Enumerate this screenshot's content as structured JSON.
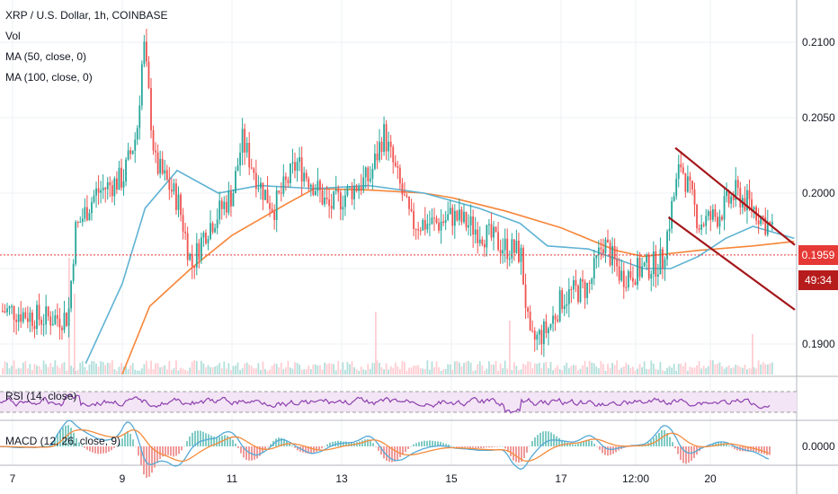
{
  "header": {
    "symbol_line": "XRP / U.S. Dollar, 1h, COINBASE",
    "vol_label": "Vol",
    "ma50_label": "MA (50, close, 0)",
    "ma100_label": "MA (100, close, 0)"
  },
  "panes": {
    "rsi_label": "RSI (14, close)",
    "macd_label": "MACD (12, 26, close, 9)"
  },
  "price_tags": {
    "last_price": "0.1959",
    "countdown": "49:34"
  },
  "colors": {
    "up": "#26a69a",
    "down": "#ef5350",
    "ma50": "#5fb3d3",
    "ma100": "#f7863a",
    "channel": "#a4161a",
    "rsi": "#8e3fb0",
    "rsi_band": "#f3e5f5",
    "macd": "#55a9d6",
    "signal": "#f58b3c",
    "last_price": "#e53935",
    "countdown_bg": "#b71c1c"
  },
  "chart_data": {
    "type": "candlestick",
    "title": "XRP / U.S. Dollar, 1h, COINBASE",
    "price_axis_ticks": [
      "0.2100",
      "0.2050",
      "0.2000",
      "0.1900"
    ],
    "macd_axis_ticks": [
      "0.0000"
    ],
    "time_axis_ticks": [
      "7",
      "9",
      "11",
      "13",
      "15",
      "17",
      "12:00",
      "20"
    ],
    "ylim": [
      0.1885,
      0.2115
    ],
    "last_price": 0.1959,
    "channel": {
      "upper": [
        [
          "19 02:00",
          0.203
        ],
        [
          "21 06:00",
          0.1966
        ]
      ],
      "lower": [
        [
          "18 23:00",
          0.1984
        ],
        [
          "21 06:00",
          0.1923
        ]
      ]
    },
    "close_path": [
      [
        "7 00:00",
        0.1922
      ],
      [
        "7 12:00",
        0.1917
      ],
      [
        "8 00:00",
        0.1918
      ],
      [
        "8 03:00",
        0.1975
      ],
      [
        "8 12:00",
        0.2
      ],
      [
        "9 00:00",
        0.201
      ],
      [
        "9 06:00",
        0.204
      ],
      [
        "9 09:00",
        0.21
      ],
      [
        "9 14:00",
        0.202
      ],
      [
        "10 00:00",
        0.1995
      ],
      [
        "10 06:00",
        0.1952
      ],
      [
        "10 12:00",
        0.1975
      ],
      [
        "11 00:00",
        0.2
      ],
      [
        "11 04:00",
        0.2035
      ],
      [
        "11 12:00",
        0.2005
      ],
      [
        "11 18:00",
        0.199
      ],
      [
        "12 04:00",
        0.202
      ],
      [
        "12 12:00",
        0.2005
      ],
      [
        "12 18:00",
        0.199
      ],
      [
        "13 06:00",
        0.2005
      ],
      [
        "13 12:00",
        0.201
      ],
      [
        "13 18:00",
        0.204
      ],
      [
        "14 00:00",
        0.201
      ],
      [
        "14 06:00",
        0.198
      ],
      [
        "14 18:00",
        0.198
      ],
      [
        "15 00:00",
        0.1985
      ],
      [
        "15 12:00",
        0.1975
      ],
      [
        "15 22:00",
        0.1965
      ],
      [
        "16 06:00",
        0.196
      ],
      [
        "16 10:00",
        0.19
      ],
      [
        "16 18:00",
        0.191
      ],
      [
        "17 00:00",
        0.193
      ],
      [
        "17 06:00",
        0.1935
      ],
      [
        "17 12:00",
        0.1938
      ],
      [
        "17 18:00",
        0.1968
      ],
      [
        "18 02:00",
        0.1945
      ],
      [
        "18 12:00",
        0.195
      ],
      [
        "18 20:00",
        0.1955
      ],
      [
        "19 00:00",
        0.199
      ],
      [
        "19 04:00",
        0.202
      ],
      [
        "19 12:00",
        0.198
      ],
      [
        "19 20:00",
        0.1985
      ],
      [
        "20 04:00",
        0.2
      ],
      [
        "20 12:00",
        0.199
      ],
      [
        "20 20:00",
        0.1975
      ],
      [
        "21 02:00",
        0.1945
      ],
      [
        "21 06:00",
        0.1959
      ]
    ],
    "ma50_path": [
      [
        "8 08:00",
        0.1887
      ],
      [
        "9 00:00",
        0.194
      ],
      [
        "9 10:00",
        0.199
      ],
      [
        "10 00:00",
        0.2015
      ],
      [
        "10 18:00",
        0.2
      ],
      [
        "11 12:00",
        0.2005
      ],
      [
        "12 12:00",
        0.2003
      ],
      [
        "13 12:00",
        0.2005
      ],
      [
        "14 12:00",
        0.2
      ],
      [
        "15 12:00",
        0.199
      ],
      [
        "16 06:00",
        0.198
      ],
      [
        "16 18:00",
        0.1965
      ],
      [
        "17 12:00",
        0.1963
      ],
      [
        "18 12:00",
        0.195
      ],
      [
        "19 00:00",
        0.195
      ],
      [
        "19 12:00",
        0.1958
      ],
      [
        "20 00:00",
        0.197
      ],
      [
        "20 12:00",
        0.1978
      ],
      [
        "21 06:00",
        0.197
      ]
    ],
    "ma100_path": [
      [
        "9 00:00",
        0.188
      ],
      [
        "9 12:00",
        0.1925
      ],
      [
        "10 06:00",
        0.195
      ],
      [
        "11 00:00",
        0.1972
      ],
      [
        "12 00:00",
        0.1993
      ],
      [
        "12 12:00",
        0.2003
      ],
      [
        "13 12:00",
        0.2002
      ],
      [
        "14 12:00",
        0.2
      ],
      [
        "15 00:00",
        0.1997
      ],
      [
        "16 00:00",
        0.1988
      ],
      [
        "17 00:00",
        0.1977
      ],
      [
        "18 00:00",
        0.1962
      ],
      [
        "18 12:00",
        0.1958
      ],
      [
        "19 12:00",
        0.1962
      ],
      [
        "20 12:00",
        0.1965
      ],
      [
        "21 06:00",
        0.1968
      ]
    ]
  }
}
